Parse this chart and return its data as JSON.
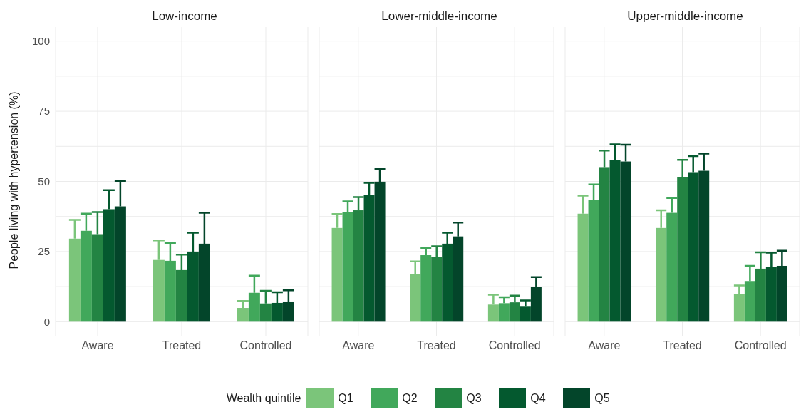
{
  "chart_data": [
    {
      "type": "bar",
      "title": "Low-income",
      "ylabel": "People living with hypertension (%)",
      "legend_title": "Wealth quintile",
      "legend": "bottom",
      "grid": true,
      "categories": [
        "Aware",
        "Treated",
        "Controlled"
      ],
      "ylim": [
        -5,
        105
      ],
      "yticks": [
        0,
        {
          "value": 12.5,
          "label": null
        },
        25,
        {
          "value": 37.5,
          "label": null
        },
        50,
        {
          "value": 62.5,
          "label": null
        },
        75,
        {
          "value": 87.5,
          "label": null
        },
        100
      ],
      "series": [
        {
          "name": "Q1",
          "color": "#7bc57a",
          "values": [
            29.6,
            22.0,
            4.9
          ],
          "errors": [
            [
              29.6,
              36.3
            ],
            [
              22.0,
              29.0
            ],
            [
              4.9,
              7.4
            ]
          ]
        },
        {
          "name": "Q2",
          "color": "#41a85b",
          "values": [
            32.4,
            21.7,
            10.3
          ],
          "errors": [
            [
              32.4,
              38.5
            ],
            [
              21.7,
              28.0
            ],
            [
              10.3,
              16.4
            ]
          ]
        },
        {
          "name": "Q3",
          "color": "#238443",
          "values": [
            31.2,
            18.4,
            6.5
          ],
          "errors": [
            [
              31.2,
              39.1
            ],
            [
              18.4,
              23.9
            ],
            [
              6.5,
              11.0
            ]
          ]
        },
        {
          "name": "Q4",
          "color": "#04592f",
          "values": [
            40.1,
            25.0,
            6.7
          ],
          "errors": [
            [
              40.1,
              46.9
            ],
            [
              25.0,
              31.7
            ],
            [
              6.7,
              10.5
            ]
          ]
        },
        {
          "name": "Q5",
          "color": "#03452a",
          "values": [
            41.1,
            27.8,
            7.2
          ],
          "errors": [
            [
              41.1,
              50.2
            ],
            [
              27.8,
              38.8
            ],
            [
              7.2,
              11.2
            ]
          ]
        }
      ]
    },
    {
      "type": "bar",
      "title": "Lower-middle-income",
      "grid": true,
      "tick_labels": "x",
      "categories": [
        "Aware",
        "Treated",
        "Controlled"
      ],
      "ylim": [
        -5,
        105
      ],
      "yticks": [
        0,
        {
          "value": 12.5,
          "label": null
        },
        25,
        {
          "value": 37.5,
          "label": null
        },
        50,
        {
          "value": 62.5,
          "label": null
        },
        75,
        {
          "value": 87.5,
          "label": null
        },
        100
      ],
      "series": [
        {
          "color": "#7bc57a",
          "values": [
            33.4,
            17.1,
            6.1
          ],
          "errors": [
            [
              33.4,
              38.4
            ],
            [
              17.1,
              21.5
            ],
            [
              6.1,
              9.6
            ]
          ]
        },
        {
          "color": "#41a85b",
          "values": [
            39.0,
            23.7,
            6.6
          ],
          "errors": [
            [
              39.0,
              42.9
            ],
            [
              23.7,
              26.2
            ],
            [
              6.6,
              8.7
            ]
          ]
        },
        {
          "color": "#238443",
          "values": [
            39.7,
            23.2,
            6.9
          ],
          "errors": [
            [
              39.7,
              44.4
            ],
            [
              23.2,
              26.9
            ],
            [
              6.9,
              9.3
            ]
          ]
        },
        {
          "color": "#04592f",
          "values": [
            45.3,
            27.8,
            5.6
          ],
          "errors": [
            [
              45.3,
              49.5
            ],
            [
              27.8,
              31.7
            ],
            [
              5.6,
              7.6
            ]
          ]
        },
        {
          "color": "#03452a",
          "values": [
            49.9,
            30.4,
            12.5
          ],
          "errors": [
            [
              49.9,
              54.5
            ],
            [
              30.4,
              35.3
            ],
            [
              12.5,
              15.9
            ]
          ]
        }
      ]
    },
    {
      "type": "bar",
      "title": "Upper-middle-income",
      "grid": true,
      "tick_labels": "x",
      "categories": [
        "Aware",
        "Treated",
        "Controlled"
      ],
      "ylim": [
        -5,
        105
      ],
      "yticks": [
        0,
        {
          "value": 12.5,
          "label": null
        },
        25,
        {
          "value": 37.5,
          "label": null
        },
        50,
        {
          "value": 62.5,
          "label": null
        },
        75,
        {
          "value": 87.5,
          "label": null
        },
        100
      ],
      "series": [
        {
          "color": "#7bc57a",
          "values": [
            38.5,
            33.4,
            9.9
          ],
          "errors": [
            [
              38.5,
              44.9
            ],
            [
              33.4,
              39.7
            ],
            [
              9.9,
              12.9
            ]
          ]
        },
        {
          "color": "#41a85b",
          "values": [
            43.4,
            38.8,
            14.5
          ],
          "errors": [
            [
              43.4,
              48.9
            ],
            [
              38.8,
              44.1
            ],
            [
              14.5,
              19.9
            ]
          ]
        },
        {
          "color": "#238443",
          "values": [
            55.1,
            51.5,
            18.9
          ],
          "errors": [
            [
              55.1,
              61.0
            ],
            [
              51.5,
              57.7
            ],
            [
              18.9,
              24.7
            ]
          ]
        },
        {
          "color": "#04592f",
          "values": [
            57.6,
            53.3,
            19.6
          ],
          "errors": [
            [
              57.6,
              63.2
            ],
            [
              53.3,
              59.0
            ],
            [
              19.6,
              24.6
            ]
          ]
        },
        {
          "color": "#03452a",
          "values": [
            57.1,
            53.8,
            19.9
          ],
          "errors": [
            [
              57.1,
              63.1
            ],
            [
              53.8,
              59.9
            ],
            [
              19.9,
              25.3
            ]
          ]
        }
      ]
    }
  ]
}
